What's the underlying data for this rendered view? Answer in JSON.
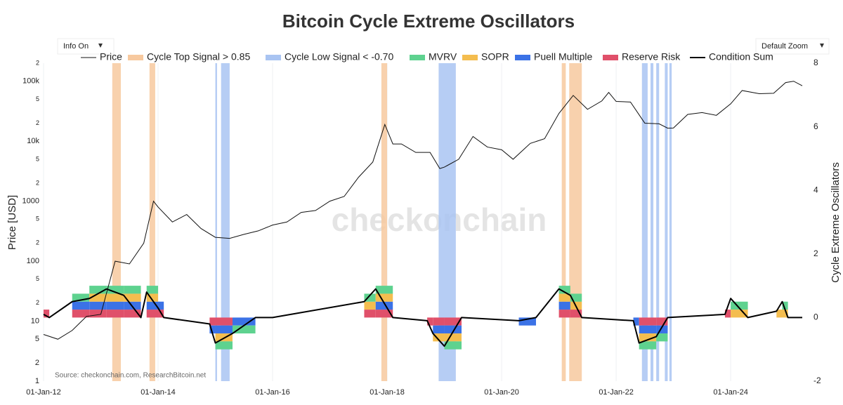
{
  "controls": {
    "info": "Info On",
    "zoom": "Default Zoom"
  },
  "chart_data": {
    "type": "line",
    "title": "Bitcoin Cycle Extreme Oscillators",
    "ylabel": "Price [USD]",
    "y2label": "Cycle Extreme Oscillators",
    "source": "Source: checkonchain.com, ResearchBitcoin.net",
    "watermark": "checkonchain",
    "log_y": true,
    "grid": true,
    "xlim": [
      2012,
      2025.25
    ],
    "xticks": [
      {
        "value": 2012,
        "label": "01-Jan-12"
      },
      {
        "value": 2014,
        "label": "01-Jan-14"
      },
      {
        "value": 2016,
        "label": "01-Jan-16"
      },
      {
        "value": 2018,
        "label": "01-Jan-18"
      },
      {
        "value": 2020,
        "label": "01-Jan-20"
      },
      {
        "value": 2022,
        "label": "01-Jan-22"
      },
      {
        "value": 2024,
        "label": "01-Jan-24"
      }
    ],
    "ylim": [
      1,
      200000
    ],
    "yticks": [
      1,
      2,
      5,
      10,
      {
        "value": 20,
        "label": "2"
      },
      {
        "value": 50,
        "label": "5"
      },
      100,
      {
        "value": 200,
        "label": "2"
      },
      {
        "value": 500,
        "label": "5"
      },
      1000,
      {
        "value": 2000,
        "label": "2"
      },
      {
        "value": 5000,
        "label": "5"
      },
      {
        "value": 10000,
        "label": "10k"
      },
      {
        "value": 20000,
        "label": "2"
      },
      {
        "value": 50000,
        "label": "5"
      },
      {
        "value": 100000,
        "label": "100k"
      },
      {
        "value": 200000,
        "label": "2"
      }
    ],
    "y2lim": [
      -2,
      8
    ],
    "y2ticks": [
      -2,
      0,
      2,
      4,
      6,
      8
    ],
    "x": [
      2012.0,
      2012.25,
      2012.5,
      2012.75,
      2013.0,
      2013.25,
      2013.5,
      2013.75,
      2013.92,
      2014.0,
      2014.25,
      2014.5,
      2014.75,
      2015.0,
      2015.25,
      2015.5,
      2015.75,
      2016.0,
      2016.25,
      2016.5,
      2016.75,
      2017.0,
      2017.25,
      2017.5,
      2017.75,
      2017.96,
      2018.1,
      2018.25,
      2018.5,
      2018.75,
      2018.92,
      2019.0,
      2019.25,
      2019.5,
      2019.75,
      2020.0,
      2020.2,
      2020.5,
      2020.75,
      2021.0,
      2021.25,
      2021.5,
      2021.75,
      2021.87,
      2022.0,
      2022.25,
      2022.5,
      2022.75,
      2022.9,
      2023.0,
      2023.25,
      2023.5,
      2023.75,
      2024.0,
      2024.2,
      2024.5,
      2024.75,
      2024.96,
      2025.1,
      2025.25
    ],
    "series": [
      {
        "name": "Price",
        "color": "#111111",
        "values": [
          6,
          5,
          7,
          12,
          13,
          100,
          90,
          200,
          1000,
          800,
          450,
          600,
          350,
          250,
          240,
          280,
          320,
          400,
          450,
          650,
          700,
          1000,
          1200,
          2500,
          4500,
          19000,
          9000,
          9000,
          6500,
          6500,
          3500,
          3700,
          5000,
          12000,
          8000,
          7200,
          5000,
          9200,
          11000,
          29000,
          58000,
          34000,
          47000,
          65000,
          46000,
          45000,
          20000,
          19500,
          16500,
          16600,
          28000,
          30000,
          27000,
          42000,
          70000,
          62000,
          63000,
          95000,
          100000,
          84000
        ]
      }
    ],
    "bands": [
      {
        "name": "Cycle Top Signal > 0.85",
        "color": "#f7c99f",
        "ranges": [
          [
            2013.2,
            2013.35
          ],
          [
            2013.85,
            2013.95
          ],
          [
            2017.9,
            2018.0
          ],
          [
            2021.05,
            2021.12
          ],
          [
            2021.18,
            2021.4
          ]
        ]
      },
      {
        "name": "Cycle Low Signal < -0.70",
        "color": "#a9c4f2",
        "ranges": [
          [
            2015.0,
            2015.03
          ],
          [
            2015.1,
            2015.25
          ],
          [
            2018.9,
            2019.2
          ],
          [
            2022.45,
            2022.55
          ],
          [
            2022.6,
            2022.65
          ],
          [
            2022.7,
            2022.75
          ],
          [
            2022.85,
            2022.9
          ],
          [
            2022.93,
            2022.97
          ]
        ]
      }
    ],
    "oscillator_x": [
      2012.0,
      2012.1,
      2012.5,
      2012.8,
      2013.1,
      2013.4,
      2013.7,
      2013.8,
      2014.0,
      2014.1,
      2014.9,
      2015.0,
      2015.3,
      2015.7,
      2016.0,
      2017.6,
      2017.8,
      2018.1,
      2018.7,
      2018.8,
      2019.0,
      2019.3,
      2020.3,
      2020.6,
      2021.0,
      2021.2,
      2021.4,
      2022.3,
      2022.4,
      2022.7,
      2022.9,
      2023.9,
      2024.0,
      2024.3,
      2024.8,
      2024.9,
      2025.0,
      2025.25
    ],
    "oscillators": [
      {
        "name": "Reserve Risk",
        "color": "#e0506a",
        "axis": "y2",
        "values": [
          0.25,
          0,
          0.25,
          0.25,
          0.25,
          0.25,
          0,
          0.25,
          0.25,
          0,
          -0.25,
          -0.25,
          0,
          0,
          0,
          0.25,
          0.25,
          0,
          -0.25,
          -0.25,
          -0.25,
          0,
          0,
          0,
          0.25,
          0.25,
          0,
          0,
          -0.25,
          -0.25,
          0,
          0.25,
          0,
          0,
          0,
          0,
          0,
          0
        ]
      },
      {
        "name": "Puell Multiple",
        "color": "#3b72e6",
        "axis": "y2",
        "values": [
          0,
          0,
          0.25,
          0.25,
          0.25,
          0.25,
          0,
          0.25,
          0.25,
          0,
          -0.25,
          -0.25,
          -0.25,
          0,
          0,
          0,
          0.25,
          0,
          0,
          -0.25,
          -0.25,
          0,
          -0.25,
          0,
          0.25,
          0,
          0,
          -0.25,
          -0.25,
          -0.25,
          0,
          0,
          0,
          0,
          0,
          0,
          0,
          0
        ]
      },
      {
        "name": "SOPR",
        "color": "#f4bd4f",
        "axis": "y2",
        "values": [
          0,
          0,
          0,
          0.25,
          0.25,
          0.25,
          0,
          0.25,
          0,
          0,
          0,
          -0.25,
          0,
          0,
          0,
          0.25,
          0.25,
          0,
          0,
          -0.25,
          -0.25,
          0,
          0,
          0,
          0.25,
          0.25,
          0,
          0,
          -0.25,
          0,
          0,
          0,
          0.25,
          0,
          0.25,
          0.25,
          0,
          0
        ]
      },
      {
        "name": "MVRV",
        "color": "#5ed28f",
        "axis": "y2",
        "values": [
          0,
          0,
          0.25,
          0.25,
          0.25,
          0.25,
          0,
          0.25,
          0,
          0,
          0,
          -0.25,
          -0.25,
          0,
          0,
          0.25,
          0.25,
          0,
          0,
          0,
          -0.25,
          0,
          0,
          0,
          0.25,
          0.25,
          0,
          0,
          -0.25,
          -0.25,
          0,
          0,
          0.25,
          0,
          0,
          0.25,
          0,
          0
        ]
      }
    ],
    "condition_sum": {
      "name": "Condition Sum",
      "color": "#000000",
      "axis": "y2",
      "values": [
        0.1,
        0,
        0.5,
        0.6,
        0.9,
        0.7,
        0,
        0.8,
        0.3,
        0,
        -0.2,
        -0.8,
        -0.5,
        0,
        0,
        0.5,
        0.9,
        0,
        -0.1,
        -0.5,
        -0.9,
        0,
        -0.1,
        0,
        0.9,
        0.7,
        0,
        -0.1,
        -0.8,
        -0.6,
        0,
        0.1,
        0.6,
        0,
        0.2,
        0.5,
        0,
        0
      ]
    }
  }
}
